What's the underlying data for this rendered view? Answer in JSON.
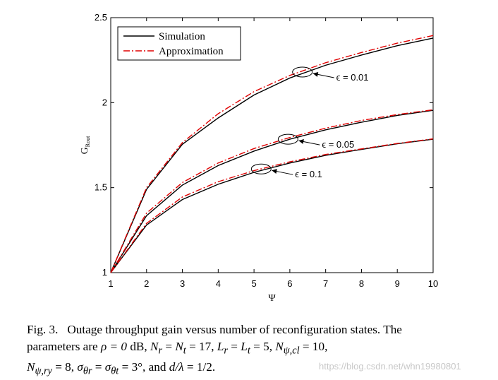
{
  "chart_data": {
    "type": "line",
    "title": "",
    "xlabel": "Ψ",
    "ylabel": "G",
    "ylabel_sub": "Rout",
    "xlim": [
      1,
      10
    ],
    "ylim": [
      1,
      2.5
    ],
    "x_ticks": [
      "1",
      "2",
      "3",
      "4",
      "5",
      "6",
      "7",
      "8",
      "9",
      "10"
    ],
    "y_ticks": [
      "1",
      "1.5",
      "2",
      "2.5"
    ],
    "grid": false,
    "legend_position": "top-left",
    "legend": [
      {
        "label": "Simulation",
        "color": "#000000",
        "style": "solid"
      },
      {
        "label": "Approximation",
        "color": "#e00000",
        "style": "dash-dot"
      }
    ],
    "x": [
      1,
      2,
      3,
      4,
      5,
      6,
      7,
      8,
      9,
      10
    ],
    "series": [
      {
        "group": "ϵ = 0.01",
        "kind": "Simulation",
        "values": [
          1.0,
          1.49,
          1.755,
          1.91,
          2.045,
          2.145,
          2.22,
          2.28,
          2.335,
          2.38
        ]
      },
      {
        "group": "ϵ = 0.01",
        "kind": "Approximation",
        "values": [
          1.0,
          1.5,
          1.765,
          1.935,
          2.065,
          2.16,
          2.235,
          2.295,
          2.35,
          2.395
        ]
      },
      {
        "group": "ϵ = 0.05",
        "kind": "Simulation",
        "values": [
          1.0,
          1.335,
          1.515,
          1.63,
          1.715,
          1.785,
          1.84,
          1.885,
          1.925,
          1.955
        ]
      },
      {
        "group": "ϵ = 0.05",
        "kind": "Approximation",
        "values": [
          1.0,
          1.35,
          1.53,
          1.645,
          1.73,
          1.795,
          1.85,
          1.895,
          1.93,
          1.958
        ]
      },
      {
        "group": "ϵ = 0.1",
        "kind": "Simulation",
        "values": [
          1.0,
          1.28,
          1.43,
          1.52,
          1.59,
          1.645,
          1.69,
          1.725,
          1.758,
          1.785
        ]
      },
      {
        "group": "ϵ = 0.1",
        "kind": "Approximation",
        "values": [
          1.0,
          1.29,
          1.445,
          1.535,
          1.6,
          1.652,
          1.695,
          1.728,
          1.76,
          1.787
        ]
      }
    ],
    "annotations": [
      {
        "text": "ϵ = 0.01",
        "point": [
          6.35,
          2.18
        ]
      },
      {
        "text": "ϵ = 0.05",
        "point": [
          5.95,
          1.785
        ]
      },
      {
        "text": "ϵ = 0.1",
        "point": [
          5.2,
          1.61
        ]
      }
    ]
  },
  "caption": {
    "label": "Fig. 3.",
    "line1_text": "Outage throughput gain versus number of reconfiguration states. The",
    "line2_a": "parameters are ",
    "line2_b": "ρ = 0",
    "line2_c": " dB, ",
    "line2_d": "N",
    "line2_d_sub": "r",
    "line2_e": " = ",
    "line2_f": "N",
    "line2_f_sub": "t",
    "line2_g": " = 17, ",
    "line2_h": "L",
    "line2_h_sub": "r",
    "line2_i": " = ",
    "line2_j": "L",
    "line2_j_sub": "t",
    "line2_k": " = 5, ",
    "line2_l": "N",
    "line2_l_sub": "ψ,cl",
    "line2_m": " = 10,",
    "line3_a": "N",
    "line3_a_sub": "ψ,ry",
    "line3_b": " = 8, ",
    "line3_c": "σ",
    "line3_c_sub": "θr",
    "line3_d": " = ",
    "line3_e": "σ",
    "line3_e_sub": "θt",
    "line3_f": " = 3°, and ",
    "line3_g": "d/λ",
    "line3_h": " = 1/2."
  },
  "watermark": "https://blog.csdn.net/whn19980801"
}
